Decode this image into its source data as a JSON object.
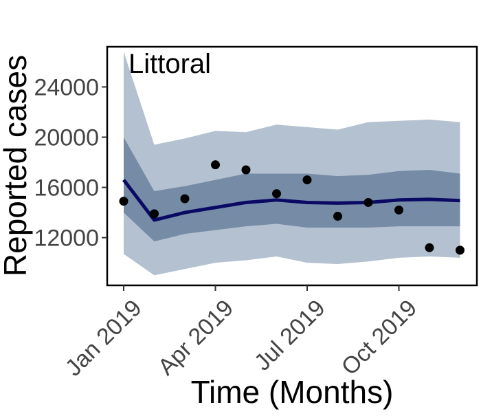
{
  "chart_data": {
    "type": "line",
    "title": "Littoral",
    "xlabel": "Time (Months)",
    "ylabel": "Reported cases",
    "x": [
      "2019-01",
      "2019-02",
      "2019-03",
      "2019-04",
      "2019-05",
      "2019-06",
      "2019-07",
      "2019-08",
      "2019-09",
      "2019-10",
      "2019-11",
      "2019-12"
    ],
    "x_ticks": [
      {
        "x": "2019-01",
        "label": "Jan 2019"
      },
      {
        "x": "2019-04",
        "label": "Apr 2019"
      },
      {
        "x": "2019-07",
        "label": "Jul 2019"
      },
      {
        "x": "2019-10",
        "label": "Oct 2019"
      }
    ],
    "y_ticks": [
      {
        "y": 12000,
        "label": "12000"
      },
      {
        "y": 16000,
        "label": "16000"
      },
      {
        "y": 20000,
        "label": "20000"
      },
      {
        "y": 24000,
        "label": "24000"
      }
    ],
    "ylim": [
      8200,
      27200
    ],
    "grid": false,
    "legend": "none",
    "series": [
      {
        "kind": "band",
        "role": "outer-interval",
        "color": "#b4c1d0",
        "lower": [
          10700,
          9000,
          9500,
          10000,
          10200,
          10500,
          10000,
          9900,
          10100,
          10400,
          10500,
          10400
        ],
        "upper": [
          26800,
          19400,
          19900,
          20500,
          20400,
          21000,
          20800,
          20600,
          21200,
          21300,
          21400,
          21200
        ]
      },
      {
        "kind": "band",
        "role": "inner-interval",
        "color": "#768ca6",
        "lower": [
          14000,
          11700,
          12300,
          12600,
          12900,
          13100,
          12800,
          12800,
          12800,
          12900,
          12900,
          12900
        ],
        "upper": [
          20000,
          15700,
          16100,
          16600,
          17100,
          17100,
          17100,
          16900,
          17000,
          17300,
          17400,
          17100
        ]
      },
      {
        "kind": "line",
        "role": "fitted",
        "color": "#0a0a64",
        "values": [
          16600,
          13400,
          14000,
          14400,
          14800,
          15000,
          14800,
          14750,
          14800,
          15000,
          15050,
          14950
        ]
      },
      {
        "kind": "points",
        "role": "observed",
        "color": "#000000",
        "values": [
          14900,
          13900,
          15100,
          17800,
          17400,
          15500,
          16600,
          13700,
          14800,
          14200,
          11200,
          11000
        ]
      }
    ]
  }
}
